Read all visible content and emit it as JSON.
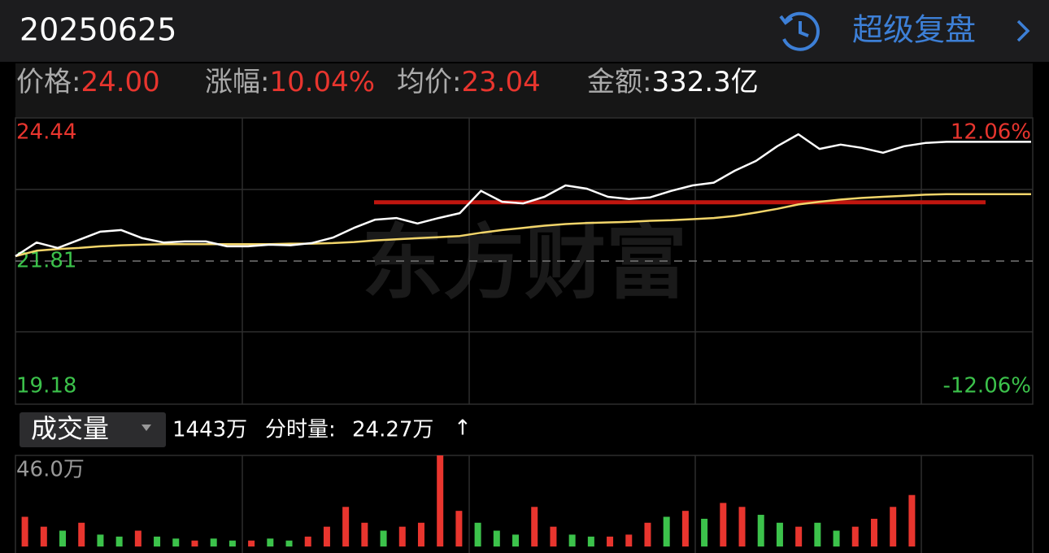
{
  "header": {
    "date": "20250625",
    "action": "超级复盘"
  },
  "quote": {
    "fields": [
      {
        "label": "价格:",
        "value": "24.00"
      },
      {
        "label": "涨幅:",
        "value": "10.04%"
      },
      {
        "label": "均价:",
        "value": "23.04"
      },
      {
        "label": "金额:",
        "value": "332.3亿"
      }
    ]
  },
  "watermark": "东方财富",
  "volume_info": {
    "selector": "成交量",
    "total": "1443万",
    "label": "分时量:",
    "value": "24.27万",
    "arrow": "↑"
  },
  "chart_data": [
    {
      "type": "line",
      "ylim": [
        19.18,
        24.44
      ],
      "yticks": [
        24.44,
        21.81,
        19.18
      ],
      "y2lim": [
        -12.06,
        12.06
      ],
      "y2ticks": [
        {
          "value": 12.06,
          "label": "12.06%"
        },
        {
          "value": -12.06,
          "label": "-12.06%"
        }
      ],
      "reference_line": {
        "value": 22.89,
        "color": "#c0160f"
      },
      "series": [
        {
          "color": "#ffffff",
          "values": [
            21.9,
            22.15,
            22.05,
            22.2,
            22.35,
            22.38,
            22.23,
            22.15,
            22.17,
            22.17,
            22.08,
            22.08,
            22.11,
            22.1,
            22.14,
            22.24,
            22.42,
            22.57,
            22.6,
            22.5,
            22.6,
            22.69,
            23.1,
            22.9,
            22.87,
            22.99,
            23.2,
            23.14,
            22.99,
            22.95,
            22.98,
            23.1,
            23.2,
            23.25,
            23.47,
            23.65,
            23.92,
            24.14,
            23.87,
            23.95,
            23.89,
            23.8,
            23.92,
            23.98,
            24.0,
            24.0,
            24.0,
            24.0,
            24.0
          ]
        },
        {
          "color": "#f2d56a",
          "values": [
            21.9,
            22.0,
            22.03,
            22.05,
            22.08,
            22.1,
            22.11,
            22.12,
            22.12,
            22.12,
            22.12,
            22.12,
            22.12,
            22.13,
            22.13,
            22.14,
            22.16,
            22.19,
            22.21,
            22.23,
            22.25,
            22.27,
            22.33,
            22.38,
            22.42,
            22.46,
            22.49,
            22.51,
            22.52,
            22.53,
            22.55,
            22.56,
            22.58,
            22.6,
            22.64,
            22.7,
            22.77,
            22.85,
            22.9,
            22.94,
            22.97,
            22.99,
            23.01,
            23.03,
            23.04,
            23.04,
            23.04,
            23.04,
            23.04
          ]
        }
      ]
    },
    {
      "type": "bar",
      "ylim": [
        0,
        46
      ],
      "yticks": [
        {
          "value": 46,
          "label": "46.0万"
        }
      ],
      "series": [
        {
          "color": "#e8352e",
          "values": [
            15,
            10,
            null,
            12,
            null,
            null,
            8,
            null,
            null,
            3,
            null,
            null,
            3,
            null,
            null,
            5,
            10,
            20,
            12,
            null,
            10,
            12,
            46,
            18,
            null,
            null,
            null,
            20,
            10,
            null,
            null,
            5,
            6,
            12,
            null,
            18,
            null,
            22,
            20,
            null,
            null,
            10,
            null,
            null,
            10,
            14,
            20,
            26
          ]
        },
        {
          "color": "#3cc24b",
          "values": [
            null,
            null,
            8,
            null,
            6,
            5,
            null,
            5,
            4,
            null,
            4,
            3,
            null,
            4,
            3,
            null,
            null,
            null,
            null,
            8,
            null,
            null,
            null,
            null,
            12,
            8,
            6,
            null,
            null,
            6,
            5,
            null,
            null,
            null,
            15,
            null,
            14,
            null,
            null,
            16,
            12,
            null,
            12,
            8,
            null,
            null,
            null,
            null
          ]
        }
      ]
    }
  ]
}
